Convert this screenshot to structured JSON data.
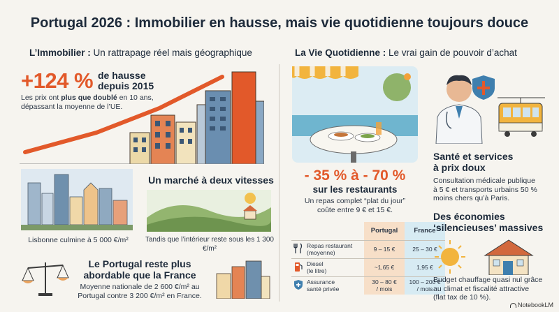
{
  "title": "Portugal 2026 : Immobilier en hausse, mais vie quotidienne toujours douce",
  "left": {
    "section_title_bold": "L’Immobilier :",
    "section_title_rest": " Un rattrapage réel mais géographique",
    "growth": {
      "value": "+124 %",
      "label_line1": "de hausse",
      "label_line2": "depuis 2015",
      "desc_pre": "Les prix ont ",
      "desc_bold": "plus que doublé",
      "desc_post": " en 10 ans,",
      "desc_line2": "dépassant la moyenne de l’UE."
    },
    "two_speed_title": "Un marché à deux vitesses",
    "lisbon_caption": "Lisbonne culmine à 5 000 €/m²",
    "interior_caption": "Tandis que l’intérieur reste sous les 1 300 €/m²",
    "affordable_title_line1": "Le Portugal reste plus",
    "affordable_title_line2": "abordable que la France",
    "affordable_desc_line1": "Moyenne nationale de 2 600 €/m² au",
    "affordable_desc_line2": "Portugal contre 3 200 €/m² en France."
  },
  "right": {
    "section_title_bold": "La Vie Quotidienne :",
    "section_title_rest": " Le vrai gain de pouvoir d’achat",
    "restaurants": {
      "pct": "- 35 % à - 70 %",
      "label": "sur les restaurants",
      "desc_line1": "Un repas complet “plat du jour”",
      "desc_line2": "coûte entre 9 € et 15 €."
    },
    "health": {
      "title_line1": "Santé et services",
      "title_line2": "à prix doux",
      "desc_line1": "Consultation médicale publique",
      "desc_line2": "à 5 € et transports urbains 50 %",
      "desc_line3": "moins chers qu’à Paris."
    },
    "savings": {
      "title_line1": "Des économies",
      "title_line2": "‘silencieuses’ massives",
      "desc_line1": "Budget chauffage quasi nul grâce",
      "desc_line2": "au climat et fiscalité attractive",
      "desc_line3": "(flat tax de 10 %)."
    },
    "table": {
      "col_pt": "Portugal",
      "col_fr": "France",
      "rows": [
        {
          "label_line1": "Repas restaurant",
          "label_line2": "(moyenne)",
          "icon": "cutlery-icon",
          "pt": "9 – 15 €",
          "fr": "25 – 30 €"
        },
        {
          "label_line1": "Diesel",
          "label_line2": "(le litre)",
          "icon": "fuel-pump-icon",
          "pt": "~1,65 €",
          "fr": "1,95 €"
        },
        {
          "label_line1": "Assurance",
          "label_line2": "santé privée",
          "icon": "health-shield-icon",
          "pt_line1": "30 – 80 €",
          "pt_line2": "/ mois",
          "fr_line1": "100 – 200 €",
          "fr_line2": "/ mois"
        }
      ]
    }
  },
  "brand": "NotebookLM",
  "colors": {
    "accent": "#e2592a",
    "text": "#1d2a3a",
    "background": "#f6f4ef",
    "portugal_col": "#f7dfc8",
    "france_col": "#d7ebf3"
  }
}
